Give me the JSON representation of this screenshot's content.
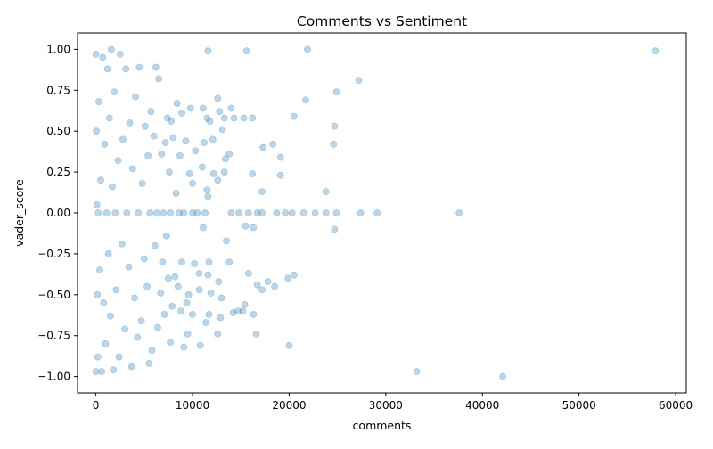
{
  "chart_data": {
    "type": "scatter",
    "title": "Comments vs Sentiment",
    "xlabel": "comments",
    "ylabel": "vader_score",
    "xlim": [
      -1900,
      61100
    ],
    "ylim": [
      -1.1,
      1.1
    ],
    "xticks": [
      0,
      10000,
      20000,
      30000,
      40000,
      50000,
      60000
    ],
    "xtick_labels": [
      "0",
      "10000",
      "20000",
      "30000",
      "40000",
      "50000",
      "60000"
    ],
    "yticks": [
      1.0,
      0.75,
      0.5,
      0.25,
      0.0,
      -0.25,
      -0.5,
      -0.75,
      -1.0
    ],
    "ytick_labels": [
      "1.00",
      "0.75",
      "0.50",
      "0.25",
      "0.00",
      "−0.25",
      "−0.50",
      "−0.75",
      "−1.00"
    ],
    "grid": false,
    "legend": "none",
    "marker_color": "#1f77b4",
    "marker_opacity": 0.3,
    "series": [
      {
        "points": [
          [
            57900,
            0.99
          ],
          [
            42100,
            -1.0
          ],
          [
            33200,
            -0.97
          ],
          [
            37600,
            0.0
          ],
          [
            29100,
            0.0
          ],
          [
            27400,
            0.0
          ],
          [
            27200,
            0.81
          ],
          [
            24900,
            0.74
          ],
          [
            24700,
            0.53
          ],
          [
            24600,
            0.42
          ],
          [
            24700,
            -0.1
          ],
          [
            24900,
            0.0
          ],
          [
            23800,
            0.13
          ],
          [
            23800,
            0.0
          ],
          [
            22700,
            0.0
          ],
          [
            21900,
            1.0
          ],
          [
            21700,
            0.69
          ],
          [
            21500,
            0.0
          ],
          [
            20500,
            0.59
          ],
          [
            20500,
            -0.38
          ],
          [
            20000,
            -0.81
          ],
          [
            19900,
            -0.4
          ],
          [
            20300,
            0.0
          ],
          [
            19600,
            0.0
          ],
          [
            19100,
            0.23
          ],
          [
            19100,
            0.34
          ],
          [
            18700,
            0.0
          ],
          [
            18500,
            -0.45
          ],
          [
            18300,
            0.42
          ],
          [
            17800,
            -0.42
          ],
          [
            17200,
            0.0
          ],
          [
            17200,
            -0.47
          ],
          [
            17200,
            0.13
          ],
          [
            17300,
            0.4
          ],
          [
            16700,
            -0.44
          ],
          [
            16700,
            0.0
          ],
          [
            16600,
            -0.74
          ],
          [
            16300,
            -0.09
          ],
          [
            16300,
            -0.62
          ],
          [
            16200,
            0.58
          ],
          [
            16200,
            0.24
          ],
          [
            15800,
            0.0
          ],
          [
            15800,
            -0.37
          ],
          [
            15500,
            -0.08
          ],
          [
            15400,
            -0.56
          ],
          [
            15300,
            0.58
          ],
          [
            15600,
            0.99
          ],
          [
            15200,
            -0.6
          ],
          [
            14800,
            0.0
          ],
          [
            14700,
            -0.6
          ],
          [
            14300,
            0.58
          ],
          [
            14000,
            0.0
          ],
          [
            14000,
            0.64
          ],
          [
            14200,
            -0.61
          ],
          [
            13800,
            0.36
          ],
          [
            13800,
            -0.3
          ],
          [
            13500,
            -0.17
          ],
          [
            13400,
            0.33
          ],
          [
            13300,
            0.58
          ],
          [
            13300,
            0.25
          ],
          [
            13100,
            0.51
          ],
          [
            13000,
            -0.52
          ],
          [
            12900,
            -0.64
          ],
          [
            12800,
            0.62
          ],
          [
            12700,
            -0.42
          ],
          [
            12600,
            0.7
          ],
          [
            12600,
            -0.74
          ],
          [
            12600,
            0.2
          ],
          [
            12200,
            0.24
          ],
          [
            12100,
            0.45
          ],
          [
            11900,
            -0.49
          ],
          [
            11800,
            0.56
          ],
          [
            11700,
            -0.62
          ],
          [
            11600,
            0.99
          ],
          [
            11600,
            0.1
          ],
          [
            11700,
            -0.3
          ],
          [
            11600,
            -0.38
          ],
          [
            11500,
            0.14
          ],
          [
            11500,
            0.58
          ],
          [
            11400,
            -0.67
          ],
          [
            11300,
            0.0
          ],
          [
            11200,
            0.43
          ],
          [
            11100,
            -0.09
          ],
          [
            11100,
            0.64
          ],
          [
            11000,
            0.28
          ],
          [
            10800,
            -0.81
          ],
          [
            10700,
            -0.47
          ],
          [
            10700,
            -0.37
          ],
          [
            10500,
            0.0
          ],
          [
            10300,
            0.38
          ],
          [
            10200,
            -0.31
          ],
          [
            10000,
            0.0
          ],
          [
            10000,
            0.18
          ],
          [
            10000,
            -0.62
          ],
          [
            9800,
            0.64
          ],
          [
            9700,
            0.24
          ],
          [
            9600,
            -0.5
          ],
          [
            9500,
            -0.74
          ],
          [
            9400,
            -0.55
          ],
          [
            9300,
            0.44
          ],
          [
            9100,
            -0.82
          ],
          [
            9100,
            0.0
          ],
          [
            8900,
            0.61
          ],
          [
            8900,
            -0.3
          ],
          [
            8800,
            -0.6
          ],
          [
            8700,
            0.35
          ],
          [
            8600,
            0.0
          ],
          [
            8500,
            -0.45
          ],
          [
            8400,
            0.67
          ],
          [
            8300,
            0.12
          ],
          [
            8200,
            -0.39
          ],
          [
            8000,
            0.46
          ],
          [
            7900,
            -0.57
          ],
          [
            7800,
            0.56
          ],
          [
            7700,
            -0.79
          ],
          [
            7700,
            0.0
          ],
          [
            7600,
            0.25
          ],
          [
            7500,
            -0.4
          ],
          [
            7400,
            0.58
          ],
          [
            7300,
            -0.14
          ],
          [
            7200,
            0.43
          ],
          [
            7100,
            -0.62
          ],
          [
            7000,
            0.0
          ],
          [
            6900,
            -0.3
          ],
          [
            6800,
            0.36
          ],
          [
            6700,
            -0.49
          ],
          [
            6500,
            0.82
          ],
          [
            6400,
            -0.7
          ],
          [
            6300,
            0.0
          ],
          [
            6200,
            0.89
          ],
          [
            6100,
            -0.2
          ],
          [
            6000,
            0.47
          ],
          [
            5800,
            -0.84
          ],
          [
            5700,
            0.62
          ],
          [
            5600,
            0.0
          ],
          [
            5500,
            -0.92
          ],
          [
            5400,
            0.35
          ],
          [
            5300,
            -0.45
          ],
          [
            5100,
            0.53
          ],
          [
            5000,
            -0.28
          ],
          [
            4800,
            0.18
          ],
          [
            4700,
            -0.66
          ],
          [
            4500,
            0.89
          ],
          [
            4400,
            0.0
          ],
          [
            4300,
            -0.76
          ],
          [
            4100,
            0.71
          ],
          [
            4000,
            -0.52
          ],
          [
            3800,
            0.27
          ],
          [
            3700,
            -0.94
          ],
          [
            3500,
            0.55
          ],
          [
            3400,
            -0.33
          ],
          [
            3200,
            0.0
          ],
          [
            3100,
            0.88
          ],
          [
            3000,
            -0.71
          ],
          [
            2800,
            0.45
          ],
          [
            2700,
            -0.19
          ],
          [
            2500,
            0.97
          ],
          [
            2400,
            -0.88
          ],
          [
            2300,
            0.32
          ],
          [
            2100,
            -0.47
          ],
          [
            2000,
            0.0
          ],
          [
            1900,
            0.74
          ],
          [
            1800,
            -0.96
          ],
          [
            1700,
            0.16
          ],
          [
            1600,
            1.0
          ],
          [
            1500,
            -0.63
          ],
          [
            1400,
            0.58
          ],
          [
            1300,
            -0.25
          ],
          [
            1200,
            0.88
          ],
          [
            1100,
            0.0
          ],
          [
            1000,
            -0.8
          ],
          [
            900,
            0.42
          ],
          [
            800,
            -0.55
          ],
          [
            700,
            0.95
          ],
          [
            600,
            -0.97
          ],
          [
            500,
            0.2
          ],
          [
            400,
            -0.35
          ],
          [
            300,
            0.68
          ],
          [
            200,
            -0.88
          ],
          [
            100,
            0.05
          ],
          [
            0,
            0.97
          ],
          [
            0,
            -0.97
          ],
          [
            50,
            0.5
          ],
          [
            150,
            -0.5
          ],
          [
            250,
            0.0
          ]
        ]
      }
    ]
  }
}
